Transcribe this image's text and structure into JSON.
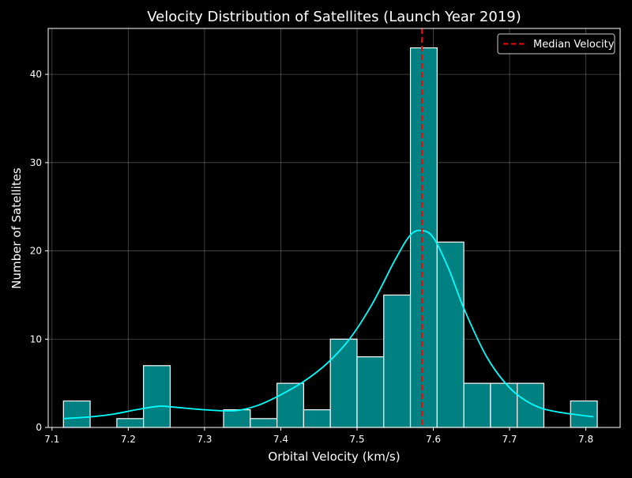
{
  "chart_data": {
    "type": "bar",
    "title": "Velocity Distribution of Satellites (Launch Year 2019)",
    "xlabel": "Orbital Velocity (km/s)",
    "ylabel": "Number of Satellites",
    "xlim": [
      7.095,
      7.845
    ],
    "ylim": [
      0,
      45.2
    ],
    "xticks": [
      "7.1",
      "7.2",
      "7.3",
      "7.4",
      "7.5",
      "7.6",
      "7.7",
      "7.8"
    ],
    "yticks": [
      "0",
      "10",
      "20",
      "30",
      "40"
    ],
    "grid": true,
    "legend_position": "top-right",
    "bar_color": "#008080",
    "bar_edge_color": "#ffffff",
    "bins": [
      {
        "x0": 7.115,
        "x1": 7.15,
        "count": 3
      },
      {
        "x0": 7.15,
        "x1": 7.185,
        "count": 0
      },
      {
        "x0": 7.185,
        "x1": 7.22,
        "count": 1
      },
      {
        "x0": 7.22,
        "x1": 7.255,
        "count": 7
      },
      {
        "x0": 7.255,
        "x1": 7.29,
        "count": 0
      },
      {
        "x0": 7.29,
        "x1": 7.325,
        "count": 0
      },
      {
        "x0": 7.325,
        "x1": 7.36,
        "count": 2
      },
      {
        "x0": 7.36,
        "x1": 7.395,
        "count": 1
      },
      {
        "x0": 7.395,
        "x1": 7.43,
        "count": 5
      },
      {
        "x0": 7.43,
        "x1": 7.465,
        "count": 2
      },
      {
        "x0": 7.465,
        "x1": 7.5,
        "count": 10
      },
      {
        "x0": 7.5,
        "x1": 7.535,
        "count": 8
      },
      {
        "x0": 7.535,
        "x1": 7.57,
        "count": 15
      },
      {
        "x0": 7.57,
        "x1": 7.605,
        "count": 43
      },
      {
        "x0": 7.605,
        "x1": 7.64,
        "count": 21
      },
      {
        "x0": 7.64,
        "x1": 7.675,
        "count": 5
      },
      {
        "x0": 7.675,
        "x1": 7.71,
        "count": 5
      },
      {
        "x0": 7.71,
        "x1": 7.745,
        "count": 5
      },
      {
        "x0": 7.745,
        "x1": 7.78,
        "count": 0
      },
      {
        "x0": 7.78,
        "x1": 7.815,
        "count": 3
      }
    ],
    "kde": {
      "name": "KDE",
      "color": "#00ffff",
      "x": [
        7.115,
        7.15,
        7.18,
        7.21,
        7.24,
        7.26,
        7.3,
        7.34,
        7.37,
        7.4,
        7.43,
        7.46,
        7.49,
        7.52,
        7.55,
        7.57,
        7.585,
        7.6,
        7.62,
        7.64,
        7.67,
        7.7,
        7.73,
        7.76,
        7.81
      ],
      "y": [
        1.0,
        1.2,
        1.5,
        2.0,
        2.4,
        2.3,
        2.0,
        1.9,
        2.5,
        3.7,
        5.2,
        7.2,
        10.0,
        14.0,
        19.0,
        21.8,
        22.3,
        21.5,
        18.0,
        13.5,
        8.0,
        4.5,
        2.6,
        1.8,
        1.2
      ]
    },
    "median": {
      "name": "Median Velocity",
      "value": 7.585,
      "color": "#ff0000"
    }
  }
}
